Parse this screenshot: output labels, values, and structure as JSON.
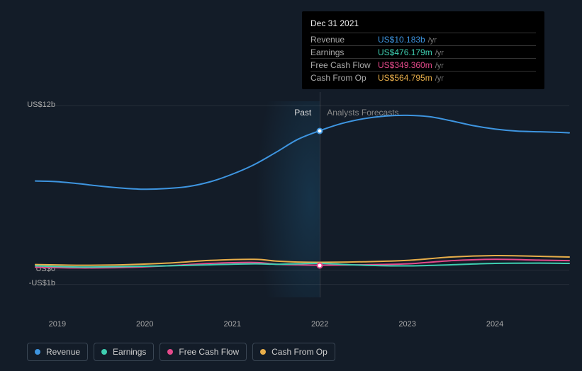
{
  "colors": {
    "background": "#131c28",
    "revenue": "#3e95e0",
    "earnings": "#3ecfb1",
    "free_cash_flow": "#e54a8b",
    "cash_from_op": "#e8ae4a",
    "grid": "rgba(255,255,255,0.08)",
    "axis_text": "#aaaaaa"
  },
  "chart": {
    "type": "line",
    "x_range": [
      2018.75,
      2024.85
    ],
    "y_range_b": [
      -2.0,
      13.0
    ],
    "y_ticks": [
      {
        "value_b": 12.0,
        "label": "US$12b"
      },
      {
        "value_b": 0.0,
        "label": "US$0"
      },
      {
        "value_b": -1.0,
        "label": "-US$1b"
      }
    ],
    "x_ticks": [
      {
        "value": 2019,
        "label": "2019"
      },
      {
        "value": 2020,
        "label": "2020"
      },
      {
        "value": 2021,
        "label": "2021"
      },
      {
        "value": 2022,
        "label": "2022"
      },
      {
        "value": 2023,
        "label": "2023"
      },
      {
        "value": 2024,
        "label": "2024"
      }
    ],
    "divider_x": 2022.0,
    "region_labels": {
      "past": "Past",
      "forecast": "Analysts Forecasts"
    },
    "past_glow_start_x": 2021.0,
    "line_width": 2,
    "series": [
      {
        "id": "revenue",
        "label": "Revenue",
        "color_key": "revenue",
        "points": [
          [
            2018.75,
            6.5
          ],
          [
            2019.0,
            6.45
          ],
          [
            2019.25,
            6.3
          ],
          [
            2019.5,
            6.12
          ],
          [
            2019.75,
            5.98
          ],
          [
            2020.0,
            5.9
          ],
          [
            2020.25,
            5.95
          ],
          [
            2020.5,
            6.1
          ],
          [
            2020.75,
            6.45
          ],
          [
            2021.0,
            7.0
          ],
          [
            2021.25,
            7.7
          ],
          [
            2021.5,
            8.6
          ],
          [
            2021.75,
            9.55
          ],
          [
            2022.0,
            10.18
          ],
          [
            2022.25,
            10.7
          ],
          [
            2022.5,
            11.05
          ],
          [
            2022.75,
            11.25
          ],
          [
            2023.0,
            11.3
          ],
          [
            2023.25,
            11.2
          ],
          [
            2023.5,
            10.9
          ],
          [
            2023.75,
            10.55
          ],
          [
            2024.0,
            10.3
          ],
          [
            2024.25,
            10.15
          ],
          [
            2024.5,
            10.1
          ],
          [
            2024.75,
            10.05
          ],
          [
            2024.85,
            10.02
          ]
        ]
      },
      {
        "id": "cash_from_op",
        "label": "Cash From Op",
        "color_key": "cash_from_op",
        "points": [
          [
            2018.75,
            0.4
          ],
          [
            2019.25,
            0.35
          ],
          [
            2019.75,
            0.38
          ],
          [
            2020.25,
            0.5
          ],
          [
            2020.75,
            0.7
          ],
          [
            2021.25,
            0.78
          ],
          [
            2021.5,
            0.65
          ],
          [
            2021.75,
            0.58
          ],
          [
            2022.0,
            0.56
          ],
          [
            2022.5,
            0.6
          ],
          [
            2023.0,
            0.7
          ],
          [
            2023.5,
            0.95
          ],
          [
            2024.0,
            1.05
          ],
          [
            2024.5,
            1.0
          ],
          [
            2024.85,
            0.95
          ]
        ]
      },
      {
        "id": "free_cash_flow",
        "label": "Free Cash Flow",
        "color_key": "free_cash_flow",
        "points": [
          [
            2018.75,
            0.2
          ],
          [
            2019.25,
            0.15
          ],
          [
            2019.75,
            0.18
          ],
          [
            2020.25,
            0.3
          ],
          [
            2020.75,
            0.48
          ],
          [
            2021.25,
            0.55
          ],
          [
            2021.5,
            0.42
          ],
          [
            2021.75,
            0.38
          ],
          [
            2022.0,
            0.35
          ],
          [
            2022.5,
            0.38
          ],
          [
            2023.0,
            0.45
          ],
          [
            2023.5,
            0.68
          ],
          [
            2024.0,
            0.78
          ],
          [
            2024.5,
            0.72
          ],
          [
            2024.85,
            0.68
          ]
        ]
      },
      {
        "id": "earnings",
        "label": "Earnings",
        "color_key": "earnings",
        "points": [
          [
            2018.75,
            0.3
          ],
          [
            2019.25,
            0.22
          ],
          [
            2019.75,
            0.25
          ],
          [
            2020.25,
            0.3
          ],
          [
            2020.75,
            0.38
          ],
          [
            2021.25,
            0.45
          ],
          [
            2021.5,
            0.42
          ],
          [
            2021.75,
            0.45
          ],
          [
            2022.0,
            0.48
          ],
          [
            2022.5,
            0.35
          ],
          [
            2023.0,
            0.3
          ],
          [
            2023.5,
            0.38
          ],
          [
            2024.0,
            0.48
          ],
          [
            2024.5,
            0.5
          ],
          [
            2024.85,
            0.48
          ]
        ]
      }
    ],
    "hover_x": 2022.0,
    "markers": [
      {
        "series": "revenue",
        "x": 2022.0,
        "y_b": 10.18,
        "border_color_key": "revenue"
      },
      {
        "series": "free_cash_flow",
        "x": 2022.0,
        "y_b": 0.35,
        "border_color_key": "free_cash_flow"
      }
    ]
  },
  "tooltip": {
    "date": "Dec 31 2021",
    "unit": "/yr",
    "rows": [
      {
        "label": "Revenue",
        "value": "US$10.183b",
        "color_key": "revenue"
      },
      {
        "label": "Earnings",
        "value": "US$476.179m",
        "color_key": "earnings"
      },
      {
        "label": "Free Cash Flow",
        "value": "US$349.360m",
        "color_key": "free_cash_flow"
      },
      {
        "label": "Cash From Op",
        "value": "US$564.795m",
        "color_key": "cash_from_op"
      }
    ]
  },
  "legend": [
    {
      "label": "Revenue",
      "color_key": "revenue"
    },
    {
      "label": "Earnings",
      "color_key": "earnings"
    },
    {
      "label": "Free Cash Flow",
      "color_key": "free_cash_flow"
    },
    {
      "label": "Cash From Op",
      "color_key": "cash_from_op"
    }
  ]
}
